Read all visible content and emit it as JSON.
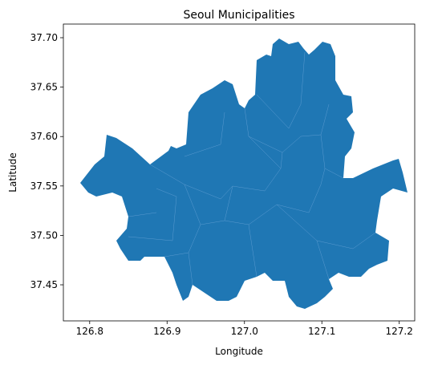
{
  "chart_data": {
    "type": "map",
    "title": "Seoul Municipalities",
    "xlabel": "Longitude",
    "ylabel": "Latitude",
    "xlim": [
      126.766,
      127.22
    ],
    "ylim": [
      37.4135,
      37.7138
    ],
    "xticks": [
      126.8,
      126.9,
      {
        "value": 127.0,
        "label": "127.0"
      },
      127.1,
      127.2
    ],
    "yticks": [
      {
        "value": 37.45,
        "label": "37.45"
      },
      {
        "value": 37.5,
        "label": "37.50"
      },
      37.55,
      {
        "value": 37.6,
        "label": "37.60"
      },
      37.65,
      {
        "value": 37.7,
        "label": "37.70"
      }
    ],
    "color": "#1f77b4"
  }
}
